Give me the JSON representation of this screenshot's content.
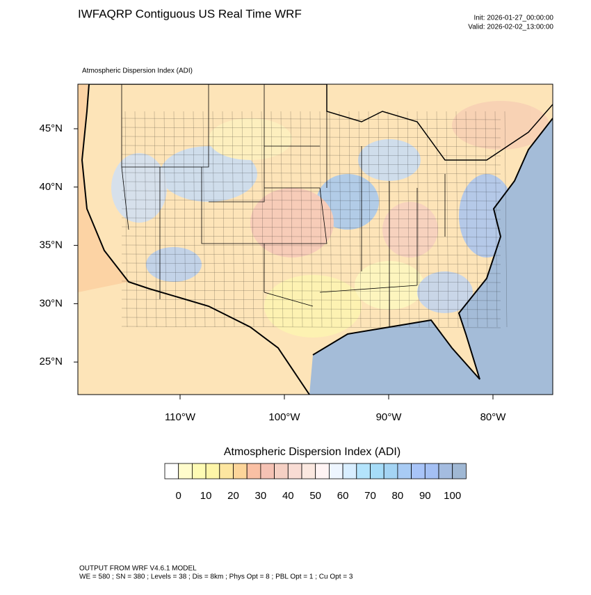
{
  "header": {
    "title": "IWFAQRP Contiguous US Real Time WRF",
    "init": "Init: 2026-01-27_00:00:00",
    "valid": "Valid: 2026-02-02_13:00:00"
  },
  "map": {
    "subtitle": "Atmospheric Dispersion Index   (ADI)",
    "lat_ticks": [
      {
        "value": 45,
        "label": "45°N"
      },
      {
        "value": 40,
        "label": "40°N"
      },
      {
        "value": 35,
        "label": "35°N"
      },
      {
        "value": 30,
        "label": "30°N"
      },
      {
        "value": 25,
        "label": "25°N"
      }
    ],
    "lon_ticks": [
      {
        "value": -110,
        "label": "110°W"
      },
      {
        "value": -100,
        "label": "100°W"
      },
      {
        "value": -90,
        "label": "90°W"
      },
      {
        "value": -80,
        "label": "80°W"
      }
    ]
  },
  "colorbar": {
    "title": "Atmospheric Dispersion Index  (ADI)",
    "ticks": [
      0,
      10,
      20,
      30,
      40,
      50,
      60,
      70,
      80,
      90,
      100
    ],
    "colors": [
      "#ffffff",
      "#fffccc",
      "#fefbb4",
      "#fdf5a8",
      "#fde6a0",
      "#fcd59a",
      "#fac0a4",
      "#f5c2b4",
      "#f5d0c4",
      "#f8dcd4",
      "#fbe8e0",
      "#fff4f4",
      "#eef6ff",
      "#d8eeff",
      "#b4e4fc",
      "#a6dcf8",
      "#a4d4f4",
      "#a8cbf4",
      "#a8c4f8",
      "#a4c0f4",
      "#a4bce0",
      "#a0b8d4"
    ]
  },
  "footer": {
    "line1": "OUTPUT FROM WRF V4.6.1 MODEL",
    "line2": "WE = 580 ; SN = 380 ; Levels = 38 ; Dis = 8km ; Phys Opt = 8 ; PBL Opt = 1 ; Cu Opt = 3"
  }
}
